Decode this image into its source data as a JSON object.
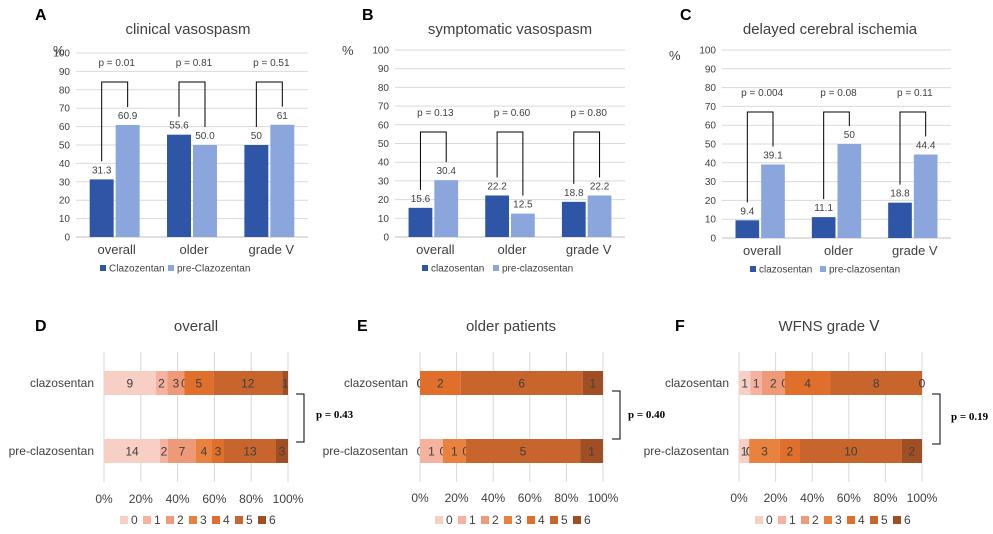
{
  "chart_data": [
    {
      "panel": "A",
      "type": "bar",
      "title": "clinical vasospasm",
      "ylabel": "%",
      "ylim": [
        0,
        100
      ],
      "yticks": [
        0,
        10,
        20,
        30,
        40,
        50,
        60,
        70,
        80,
        90,
        100
      ],
      "categories": [
        "overall",
        "older",
        "grade V"
      ],
      "series": [
        {
          "name": "Clazozentan",
          "values": [
            31.3,
            55.6,
            50
          ],
          "labels": [
            "31.3",
            "55.6",
            "50"
          ],
          "color": "#2e55a6"
        },
        {
          "name": "pre-Clazozentan",
          "values": [
            60.9,
            50.0,
            61
          ],
          "labels": [
            "60.9",
            "50.0",
            "61"
          ],
          "color": "#8aa6dc"
        }
      ],
      "pvalues": [
        "p = 0.01",
        "p = 0.81",
        "p = 0.51"
      ],
      "grid": true,
      "legend": "bottom"
    },
    {
      "panel": "B",
      "type": "bar",
      "title": "symptomatic vasospasm",
      "ylabel": "%",
      "ylim": [
        0,
        100
      ],
      "yticks": [
        0,
        10,
        20,
        30,
        40,
        50,
        60,
        70,
        80,
        90,
        100
      ],
      "categories": [
        "overall",
        "older",
        "grade V"
      ],
      "series": [
        {
          "name": "clazosentan",
          "values": [
            15.6,
            22.2,
            18.8
          ],
          "labels": [
            "15.6",
            "22.2",
            "18.8"
          ],
          "color": "#2e55a6"
        },
        {
          "name": "pre-clazosentan",
          "values": [
            30.4,
            12.5,
            22.2
          ],
          "labels": [
            "30.4",
            "12.5",
            "22.2"
          ],
          "color": "#8aa6dc"
        }
      ],
      "pvalues": [
        "p = 0.13",
        "p = 0.60",
        "p = 0.80"
      ],
      "grid": true,
      "legend": "bottom"
    },
    {
      "panel": "C",
      "type": "bar",
      "title": "delayed cerebral ischemia",
      "ylabel": "%",
      "ylim": [
        0,
        100
      ],
      "yticks": [
        0,
        10,
        20,
        30,
        40,
        50,
        60,
        70,
        80,
        90,
        100
      ],
      "categories": [
        "overall",
        "older",
        "grade V"
      ],
      "series": [
        {
          "name": "clazosentan",
          "values": [
            9.4,
            11.1,
            18.8
          ],
          "labels": [
            "9.4",
            "11.1",
            "18.8"
          ],
          "color": "#2e55a6"
        },
        {
          "name": "pre-clazosentan",
          "values": [
            39.1,
            50,
            44.4
          ],
          "labels": [
            "39.1",
            "50",
            "44.4"
          ],
          "color": "#8aa6dc"
        }
      ],
      "pvalues": [
        "p = 0.004",
        "p = 0.08",
        "p = 0.11"
      ],
      "grid": true,
      "legend": "bottom"
    },
    {
      "panel": "D",
      "type": "bar",
      "orientation": "horizontal",
      "stacked": "percent",
      "title": "overall",
      "categories": [
        "clazosentan",
        "pre-clazosentan"
      ],
      "legend_entries": [
        "0",
        "1",
        "2",
        "3",
        "4",
        "5",
        "6"
      ],
      "colors": [
        "#f8cfc4",
        "#f4b29f",
        "#ee9a78",
        "#e9813f",
        "#e06f2c",
        "#c8652c",
        "#a04f25"
      ],
      "counts": [
        [
          9,
          2,
          3,
          0,
          5,
          12,
          1
        ],
        [
          14,
          2,
          7,
          4,
          3,
          13,
          3
        ]
      ],
      "xticks": [
        "0%",
        "20%",
        "40%",
        "60%",
        "80%",
        "100%"
      ],
      "pvalue": "p = 0.43",
      "legend": "bottom"
    },
    {
      "panel": "E",
      "type": "bar",
      "orientation": "horizontal",
      "stacked": "percent",
      "title": "older patients",
      "categories": [
        "clazosentan",
        "pre-clazosentan"
      ],
      "legend_entries": [
        "0",
        "1",
        "2",
        "3",
        "4",
        "5",
        "6"
      ],
      "colors": [
        "#f8cfc4",
        "#f4b29f",
        "#ee9a78",
        "#e9813f",
        "#e06f2c",
        "#c8652c",
        "#a04f25"
      ],
      "counts": [
        [
          0,
          0,
          0,
          0,
          2,
          6,
          1
        ],
        [
          0,
          1,
          0,
          1,
          0,
          5,
          1
        ]
      ],
      "xticks": [
        "0%",
        "20%",
        "40%",
        "60%",
        "80%",
        "100%"
      ],
      "pvalue": "p = 0.40",
      "legend": "bottom"
    },
    {
      "panel": "F",
      "type": "bar",
      "orientation": "horizontal",
      "stacked": "percent",
      "title": "WFNS grade Ⅴ",
      "categories": [
        "clazosentan",
        "pre-clazosentan"
      ],
      "legend_entries": [
        "0",
        "1",
        "2",
        "3",
        "4",
        "5",
        "6"
      ],
      "colors": [
        "#f8cfc4",
        "#f4b29f",
        "#ee9a78",
        "#e9813f",
        "#e06f2c",
        "#c8652c",
        "#a04f25"
      ],
      "counts": [
        [
          1,
          1,
          2,
          0,
          4,
          8,
          0
        ],
        [
          1,
          0,
          0,
          3,
          2,
          10,
          2
        ]
      ],
      "xticks": [
        "0%",
        "20%",
        "40%",
        "60%",
        "80%",
        "100%"
      ],
      "pvalue": "p = 0.19",
      "legend": "bottom"
    }
  ]
}
